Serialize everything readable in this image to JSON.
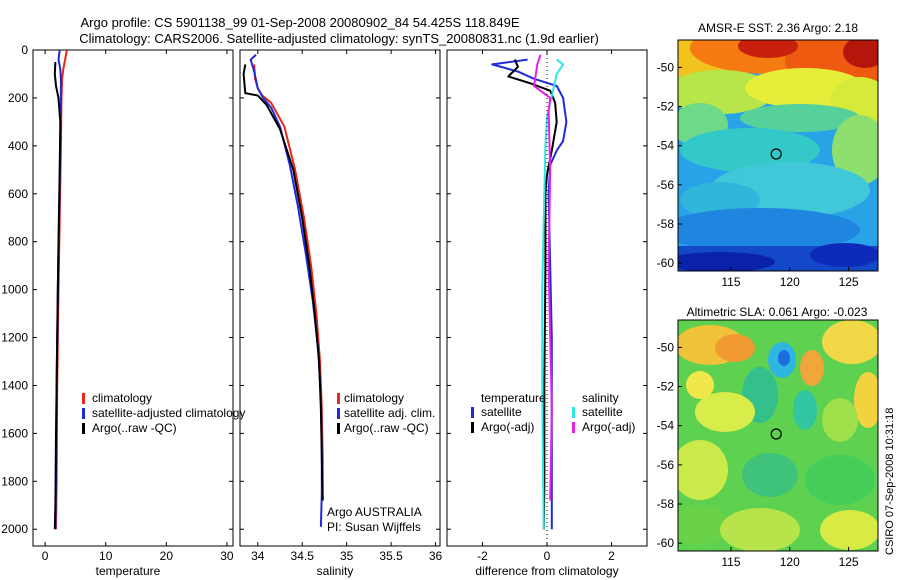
{
  "title": {
    "line1": "Argo profile: CS 5901138_99 01-Sep-2008 20080902_84 54.425S 118.849E",
    "line2": "Climatology: CARS2006. Satellite-adjusted climatology: synTS_20080831.nc (1.9d earlier)"
  },
  "side_label": "CSIRO 07-Sep-2008 10:31:18",
  "colors": {
    "red": "#e8261b",
    "blue": "#1f2bd9",
    "black": "#000000",
    "cyan": "#2ee6e6",
    "magenta": "#e61ee6"
  },
  "chart_data": [
    {
      "type": "line",
      "id": "temperature",
      "xlabel": "temperature",
      "ylabel": "",
      "xlim": [
        -2,
        31
      ],
      "ylim": [
        2070,
        0
      ],
      "xticks": [
        0,
        10,
        20,
        30
      ],
      "yticks": [
        0,
        200,
        400,
        600,
        800,
        1000,
        1200,
        1400,
        1600,
        1800,
        2000
      ],
      "legend": {
        "position": "lower-right",
        "entries": [
          "climatology",
          "satellite-adjusted climatology",
          "Argo(..raw -QC)"
        ]
      },
      "series": [
        {
          "name": "climatology",
          "color": "red",
          "points": [
            [
              3.6,
              0
            ],
            [
              3.3,
              40
            ],
            [
              3.0,
              80
            ],
            [
              2.8,
              120
            ],
            [
              2.7,
              200
            ],
            [
              2.6,
              400
            ],
            [
              2.4,
              700
            ],
            [
              2.2,
              1000
            ],
            [
              2.0,
              1400
            ],
            [
              1.9,
              1800
            ],
            [
              1.8,
              2000
            ]
          ]
        },
        {
          "name": "satellite-adjusted climatology",
          "color": "blue",
          "points": [
            [
              2.4,
              0
            ],
            [
              2.2,
              40
            ],
            [
              2.5,
              80
            ],
            [
              2.6,
              120
            ],
            [
              2.6,
              200
            ],
            [
              2.5,
              400
            ],
            [
              2.3,
              700
            ],
            [
              2.1,
              1000
            ],
            [
              1.9,
              1400
            ],
            [
              1.8,
              1800
            ],
            [
              1.7,
              2000
            ]
          ]
        },
        {
          "name": "Argo(..raw -QC)",
          "color": "black",
          "points": [
            [
              1.7,
              50
            ],
            [
              1.6,
              100
            ],
            [
              1.8,
              150
            ],
            [
              2.2,
              200
            ],
            [
              2.5,
              300
            ],
            [
              2.4,
              500
            ],
            [
              2.2,
              800
            ],
            [
              2.0,
              1200
            ],
            [
              1.8,
              1600
            ],
            [
              1.7,
              1900
            ],
            [
              1.6,
              2000
            ]
          ]
        }
      ]
    },
    {
      "type": "line",
      "id": "salinity",
      "xlabel": "salinity",
      "xlim": [
        33.8,
        36.05
      ],
      "ylim": [
        2070,
        0
      ],
      "xticks": [
        34,
        34.5,
        35,
        35.5,
        36
      ],
      "legend": {
        "position": "lower-right",
        "entries": [
          "climatology",
          "satellite adj. clim.",
          "Argo(..raw -QC)"
        ]
      },
      "annotations": [
        "Argo AUSTRALIA",
        "PI: Susan Wijffels"
      ],
      "series": [
        {
          "name": "climatology",
          "color": "red",
          "points": [
            [
              33.96,
              60
            ],
            [
              33.97,
              120
            ],
            [
              34.0,
              160
            ],
            [
              34.05,
              190
            ],
            [
              34.15,
              220
            ],
            [
              34.3,
              320
            ],
            [
              34.42,
              500
            ],
            [
              34.52,
              700
            ],
            [
              34.6,
              900
            ],
            [
              34.66,
              1100
            ],
            [
              34.7,
              1300
            ],
            [
              34.72,
              1500
            ],
            [
              34.73,
              1700
            ],
            [
              34.73,
              1880
            ]
          ]
        },
        {
          "name": "satellite adj. clim.",
          "color": "blue",
          "points": [
            [
              33.98,
              20
            ],
            [
              33.92,
              40
            ],
            [
              33.96,
              90
            ],
            [
              34.0,
              160
            ],
            [
              34.06,
              200
            ],
            [
              34.15,
              240
            ],
            [
              34.25,
              320
            ],
            [
              34.36,
              480
            ],
            [
              34.45,
              650
            ],
            [
              34.54,
              850
            ],
            [
              34.62,
              1050
            ],
            [
              34.68,
              1250
            ],
            [
              34.71,
              1450
            ],
            [
              34.72,
              1650
            ],
            [
              34.72,
              1850
            ],
            [
              34.71,
              1990
            ]
          ]
        },
        {
          "name": "Argo(..raw -QC)",
          "color": "black",
          "points": [
            [
              33.86,
              60
            ],
            [
              33.84,
              100
            ],
            [
              33.86,
              180
            ],
            [
              34.0,
              190
            ],
            [
              34.1,
              230
            ],
            [
              34.25,
              330
            ],
            [
              34.4,
              500
            ],
            [
              34.5,
              700
            ],
            [
              34.58,
              900
            ],
            [
              34.64,
              1100
            ],
            [
              34.69,
              1300
            ],
            [
              34.71,
              1500
            ],
            [
              34.72,
              1700
            ],
            [
              34.73,
              1880
            ]
          ]
        }
      ]
    },
    {
      "type": "line",
      "id": "difference",
      "xlabel": "difference from climatology",
      "xlim": [
        -3.1,
        3.1
      ],
      "ylim": [
        2070,
        0
      ],
      "xticks": [
        -2,
        0,
        2
      ],
      "legend": {
        "position": "lower-center",
        "temperature_header": "temperature",
        "salinity_header": "salinity",
        "entries": [
          "satellite",
          "Argo(-adj)",
          "satellite",
          "Argo(-adj)"
        ]
      },
      "series": [
        {
          "name": "temperature satellite",
          "color": "blue",
          "points": [
            [
              -0.6,
              40
            ],
            [
              -1.7,
              60
            ],
            [
              -0.9,
              90
            ],
            [
              -0.4,
              120
            ],
            [
              0.3,
              150
            ],
            [
              0.5,
              200
            ],
            [
              0.6,
              300
            ],
            [
              0.5,
              380
            ],
            [
              0.3,
              420
            ],
            [
              0.1,
              480
            ],
            [
              0.05,
              600
            ],
            [
              0.1,
              900
            ],
            [
              0.15,
              1200
            ],
            [
              0.15,
              1600
            ],
            [
              0.15,
              2000
            ]
          ]
        },
        {
          "name": "temperature Argo(-adj)",
          "color": "black",
          "points": [
            [
              -1.0,
              40
            ],
            [
              -0.9,
              70
            ],
            [
              -1.2,
              110
            ],
            [
              -0.5,
              140
            ],
            [
              0.1,
              170
            ],
            [
              0.25,
              220
            ],
            [
              0.3,
              300
            ],
            [
              0.15,
              420
            ],
            [
              0.0,
              520
            ],
            [
              -0.05,
              600
            ],
            [
              -0.05,
              900
            ],
            [
              -0.08,
              1400
            ],
            [
              -0.08,
              1800
            ],
            [
              -0.1,
              2000
            ]
          ]
        },
        {
          "name": "salinity satellite",
          "color": "cyan",
          "points": [
            [
              0.3,
              40
            ],
            [
              0.5,
              60
            ],
            [
              0.3,
              100
            ],
            [
              0.2,
              160
            ],
            [
              0.0,
              280
            ],
            [
              -0.05,
              400
            ],
            [
              -0.1,
              700
            ],
            [
              -0.15,
              1000
            ],
            [
              -0.15,
              1400
            ],
            [
              -0.12,
              1800
            ],
            [
              -0.1,
              2000
            ]
          ]
        },
        {
          "name": "salinity Argo(-adj)",
          "color": "magenta",
          "points": [
            [
              -0.2,
              20
            ],
            [
              -0.3,
              60
            ],
            [
              -0.4,
              150
            ],
            [
              0.1,
              200
            ],
            [
              0.05,
              260
            ],
            [
              0.1,
              500
            ],
            [
              0.05,
              900
            ],
            [
              0.1,
              1200
            ],
            [
              0.15,
              1500
            ],
            [
              0.1,
              1880
            ]
          ]
        }
      ]
    },
    {
      "type": "heatmap",
      "id": "sst",
      "title": "AMSR-E SST: 2.36 Argo: 2.18",
      "xlim": [
        110.5,
        127.5
      ],
      "ylim": [
        -60.4,
        -48.6
      ],
      "xticks": [
        115,
        120,
        125
      ],
      "yticks": [
        -50,
        -52,
        -54,
        -56,
        -58,
        -60
      ],
      "marker": {
        "lon": 118.849,
        "lat": -54.425
      }
    },
    {
      "type": "heatmap",
      "id": "sla",
      "title": "Altimetric SLA: 0.061 Argo: -0.023",
      "xlim": [
        110.5,
        127.5
      ],
      "ylim": [
        -60.4,
        -48.6
      ],
      "xticks": [
        115,
        120,
        125
      ],
      "yticks": [
        -50,
        -52,
        -54,
        -56,
        -58,
        -60
      ],
      "marker": {
        "lon": 118.849,
        "lat": -54.425
      }
    }
  ]
}
